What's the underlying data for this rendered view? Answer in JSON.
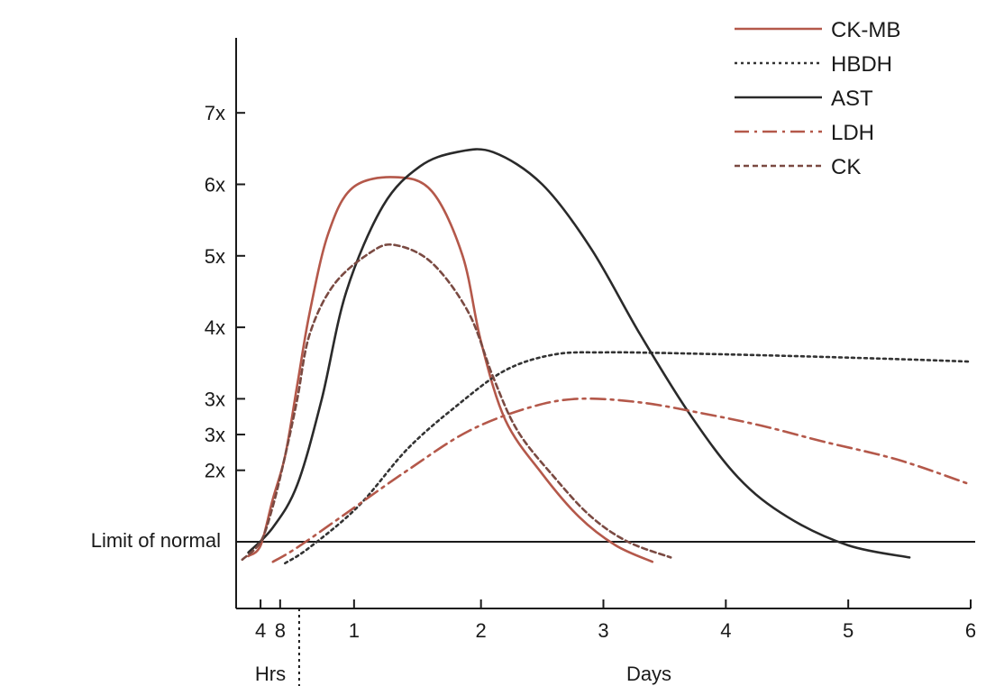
{
  "chart_data": {
    "type": "line",
    "title": "",
    "xlabel_left": "Hrs",
    "xlabel_right": "Days",
    "ylabel": "",
    "reference_line_label": "Limit of normal",
    "y_tick_labels": [
      "7x",
      "6x",
      "5x",
      "4x",
      "3x",
      "3x",
      "2x"
    ],
    "y_tick_levels": [
      7,
      6,
      5,
      4,
      3,
      2.5,
      2
    ],
    "hrs_ticks": [
      {
        "label": "4",
        "x": 0.17
      },
      {
        "label": "8",
        "x": 0.33
      }
    ],
    "day_ticks": [
      {
        "label": "1",
        "x": 1
      },
      {
        "label": "2",
        "x": 2
      },
      {
        "label": "3",
        "x": 3
      },
      {
        "label": "4",
        "x": 4
      },
      {
        "label": "5",
        "x": 5
      },
      {
        "label": "6",
        "x": 6
      }
    ],
    "hrs_days_separator_x": 0.5,
    "xlim": [
      0,
      6
    ],
    "ylim": [
      0.6,
      7
    ],
    "reference_level": 1,
    "grid": false,
    "legend_position": "top-right",
    "series": [
      {
        "name": "CK-MB",
        "style": "solid",
        "color": "#b4584a",
        "points": [
          [
            0.1,
            0.8
          ],
          [
            0.2,
            0.95
          ],
          [
            0.3,
            1.6
          ],
          [
            0.4,
            2.2
          ],
          [
            0.5,
            3.2
          ],
          [
            0.6,
            4.2
          ],
          [
            0.75,
            5.3
          ],
          [
            0.95,
            5.95
          ],
          [
            1.3,
            6.1
          ],
          [
            1.6,
            5.9
          ],
          [
            1.85,
            5.0
          ],
          [
            2.0,
            3.8
          ],
          [
            2.2,
            2.7
          ],
          [
            2.5,
            1.95
          ],
          [
            2.8,
            1.35
          ],
          [
            3.1,
            0.95
          ],
          [
            3.4,
            0.72
          ]
        ]
      },
      {
        "name": "HBDH",
        "style": "dotted",
        "color": "#333333",
        "points": [
          [
            0.4,
            0.7
          ],
          [
            0.6,
            0.92
          ],
          [
            1.0,
            1.5
          ],
          [
            1.4,
            2.3
          ],
          [
            1.8,
            2.9
          ],
          [
            2.2,
            3.4
          ],
          [
            2.6,
            3.62
          ],
          [
            3.0,
            3.65
          ],
          [
            3.5,
            3.64
          ],
          [
            4.5,
            3.6
          ],
          [
            5.5,
            3.55
          ],
          [
            6.0,
            3.52
          ]
        ]
      },
      {
        "name": "AST",
        "style": "solid",
        "color": "#2a2a2a",
        "points": [
          [
            0.1,
            0.85
          ],
          [
            0.3,
            1.2
          ],
          [
            0.5,
            1.8
          ],
          [
            0.7,
            3.0
          ],
          [
            0.9,
            4.5
          ],
          [
            1.2,
            5.7
          ],
          [
            1.5,
            6.25
          ],
          [
            1.8,
            6.45
          ],
          [
            2.1,
            6.45
          ],
          [
            2.5,
            6.0
          ],
          [
            2.9,
            5.1
          ],
          [
            3.3,
            3.9
          ],
          [
            3.7,
            2.8
          ],
          [
            4.1,
            1.9
          ],
          [
            4.5,
            1.35
          ],
          [
            5.0,
            0.95
          ],
          [
            5.5,
            0.78
          ]
        ]
      },
      {
        "name": "LDH",
        "style": "dashdot",
        "color": "#b4584a",
        "points": [
          [
            0.3,
            0.72
          ],
          [
            0.5,
            0.92
          ],
          [
            0.9,
            1.4
          ],
          [
            1.4,
            2.0
          ],
          [
            1.9,
            2.55
          ],
          [
            2.4,
            2.88
          ],
          [
            2.8,
            3.0
          ],
          [
            3.3,
            2.95
          ],
          [
            3.8,
            2.8
          ],
          [
            4.3,
            2.62
          ],
          [
            4.8,
            2.4
          ],
          [
            5.4,
            2.15
          ],
          [
            6.0,
            1.8
          ]
        ]
      },
      {
        "name": "CK",
        "style": "dashed",
        "color": "#7a4a42",
        "points": [
          [
            0.05,
            0.75
          ],
          [
            0.2,
            1.0
          ],
          [
            0.3,
            1.5
          ],
          [
            0.4,
            2.2
          ],
          [
            0.5,
            3.0
          ],
          [
            0.6,
            3.9
          ],
          [
            0.8,
            4.6
          ],
          [
            1.1,
            5.05
          ],
          [
            1.3,
            5.15
          ],
          [
            1.6,
            4.9
          ],
          [
            1.9,
            4.2
          ],
          [
            2.1,
            3.3
          ],
          [
            2.3,
            2.55
          ],
          [
            2.6,
            1.9
          ],
          [
            2.9,
            1.35
          ],
          [
            3.2,
            1.0
          ],
          [
            3.55,
            0.78
          ]
        ]
      }
    ]
  }
}
